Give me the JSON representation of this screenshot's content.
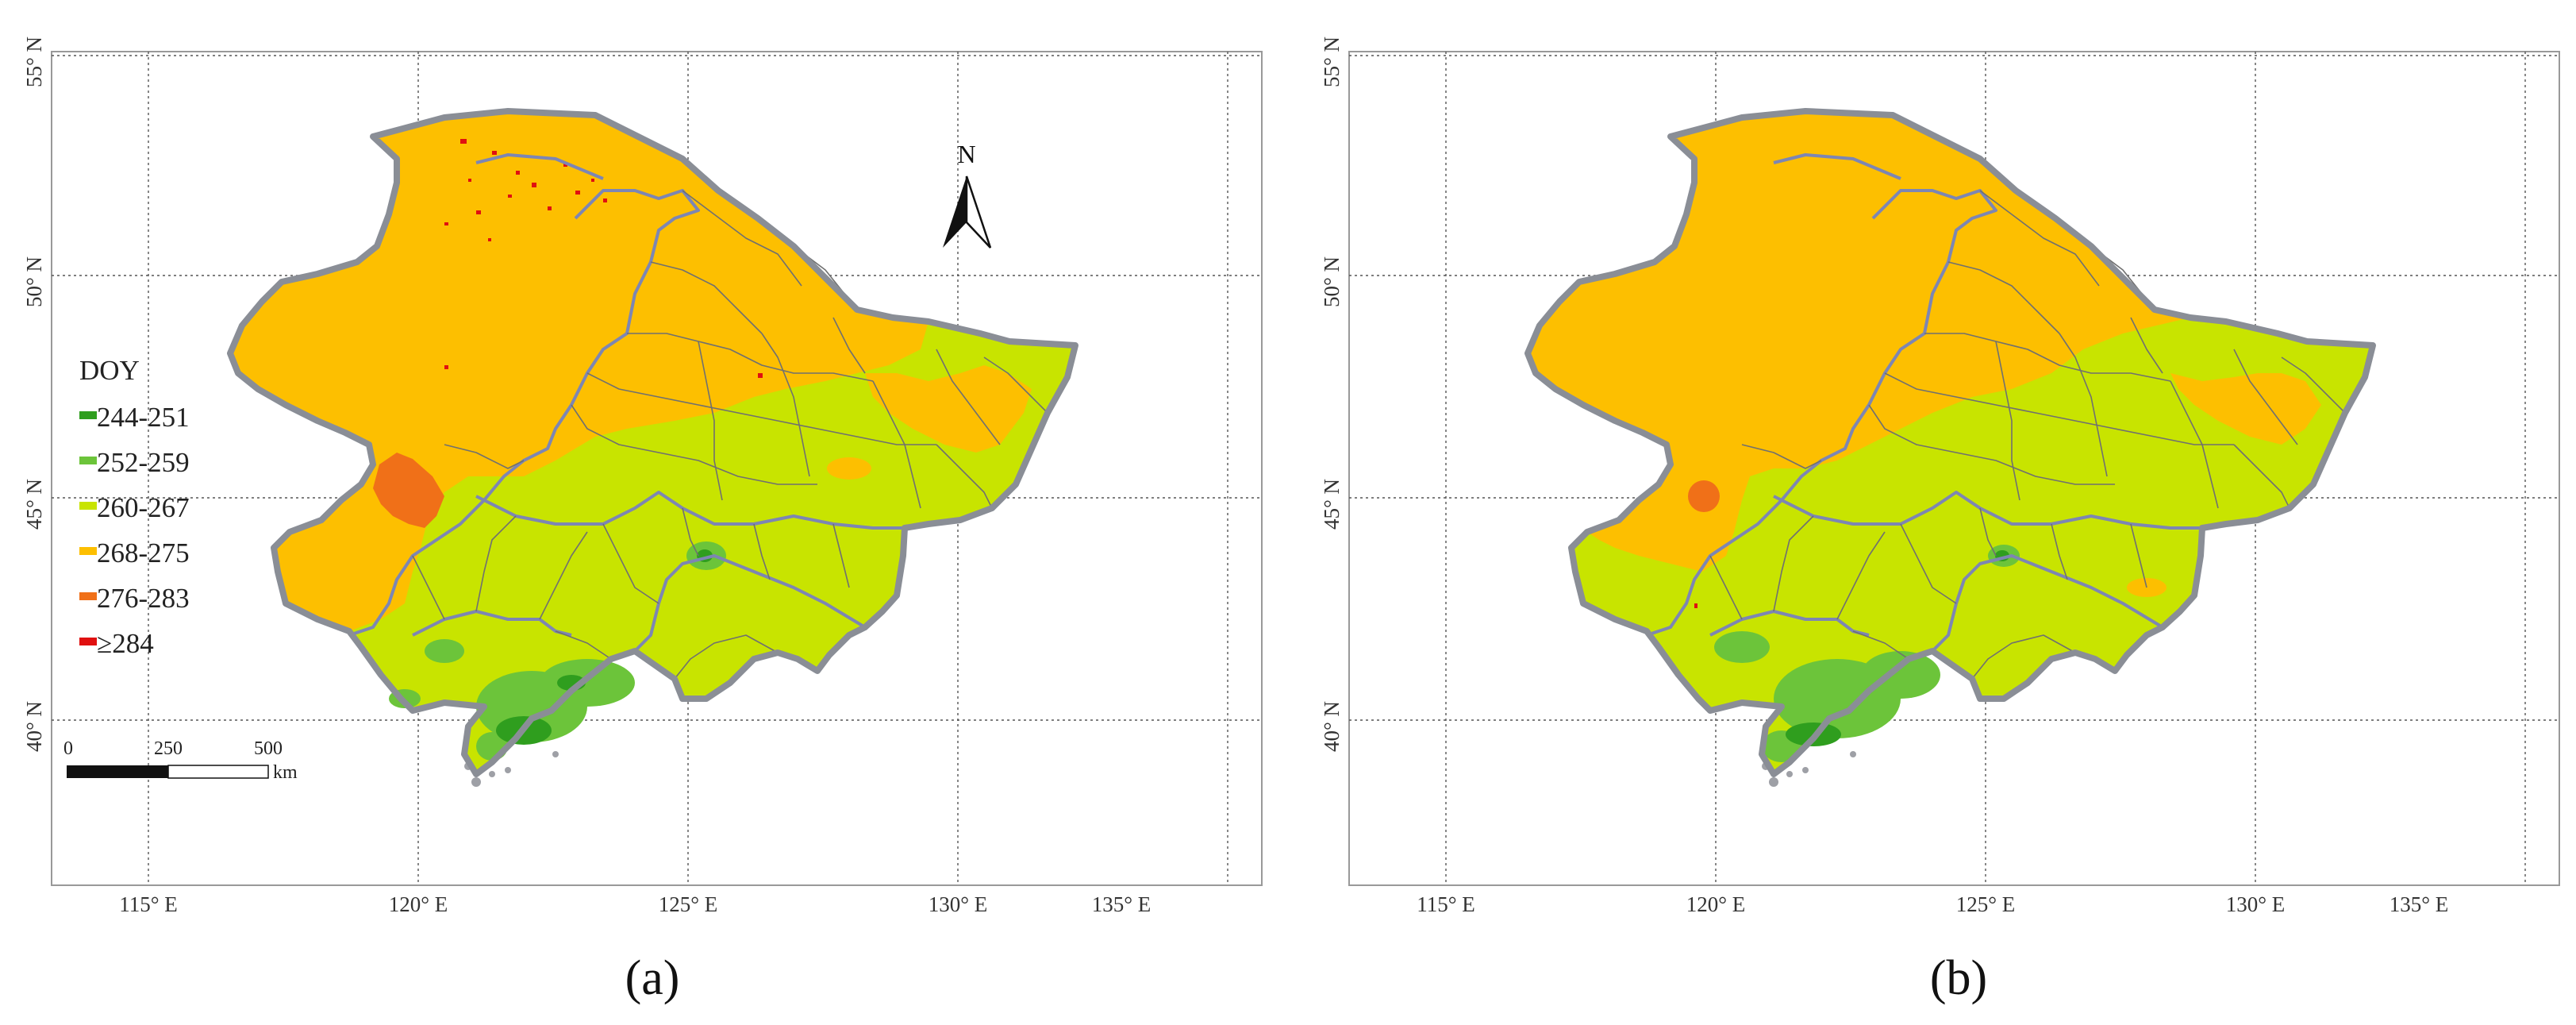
{
  "panels": [
    {
      "id": "a",
      "caption": "(a)",
      "show_legend": true,
      "show_north_arrow": true,
      "show_scale_bar": true
    },
    {
      "id": "b",
      "caption": "(b)",
      "show_legend": false,
      "show_north_arrow": false,
      "show_scale_bar": false
    }
  ],
  "lat_labels": [
    "55° N",
    "50° N",
    "45° N",
    "40° N"
  ],
  "lon_labels": [
    "115° E",
    "120° E",
    "125° E",
    "130° E",
    "135° E"
  ],
  "legend": {
    "title": "DOY",
    "items": [
      {
        "label": "244-251",
        "color": "#2f9e1e"
      },
      {
        "label": "252-259",
        "color": "#6cc43a"
      },
      {
        "label": "260-267",
        "color": "#c8e400"
      },
      {
        "label": "268-275",
        "color": "#fdbf00"
      },
      {
        "label": "276-283",
        "color": "#f07018"
      },
      {
        "label": "≥284",
        "color": "#e01010"
      }
    ]
  },
  "north_arrow": {
    "label": "N"
  },
  "scale_bar": {
    "ticks": [
      "0",
      "250",
      "500"
    ],
    "unit": "km"
  },
  "colors": {
    "border": "#8a8e96",
    "province_line": "#7d86b3",
    "county_line": "#707070",
    "grid": "#555555",
    "frame": "#999999"
  }
}
